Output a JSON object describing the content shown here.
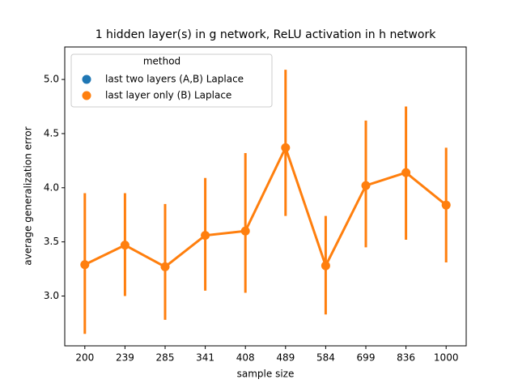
{
  "chart_data": {
    "type": "pointplot",
    "title": "1 hidden layer(s) in g network, ReLU activation in h network",
    "x_label": "sample size",
    "y_label": "average generalization error",
    "categories": [
      "200",
      "239",
      "285",
      "341",
      "408",
      "489",
      "584",
      "699",
      "836",
      "1000"
    ],
    "legend_title": "method",
    "legend_position": "upper left",
    "series": [
      {
        "name": "last two layers (A,B) Laplace",
        "color": "#1f77b4",
        "values": [
          null,
          null,
          null,
          null,
          null,
          null,
          null,
          null,
          null,
          null
        ],
        "error_low": [
          null,
          null,
          null,
          null,
          null,
          null,
          null,
          null,
          null,
          null
        ],
        "error_high": [
          null,
          null,
          null,
          null,
          null,
          null,
          null,
          null,
          null,
          null
        ]
      },
      {
        "name": "last layer only (B) Laplace",
        "color": "#ff7f0e",
        "values": [
          3.29,
          3.47,
          3.27,
          3.56,
          3.6,
          4.37,
          3.28,
          4.02,
          4.14,
          3.84
        ],
        "error_low": [
          2.65,
          3.0,
          2.78,
          3.05,
          3.03,
          3.74,
          2.83,
          3.45,
          3.52,
          3.31
        ],
        "error_high": [
          3.95,
          3.95,
          3.85,
          4.09,
          4.32,
          5.09,
          3.74,
          4.62,
          4.75,
          4.37
        ]
      }
    ],
    "ylim": [
      2.54,
      5.3
    ],
    "yticks": [
      {
        "value": 3,
        "label": "3.0"
      },
      3.5,
      {
        "value": 4,
        "label": "4.0"
      },
      4.5,
      {
        "value": 5,
        "label": "5.0"
      }
    ]
  }
}
